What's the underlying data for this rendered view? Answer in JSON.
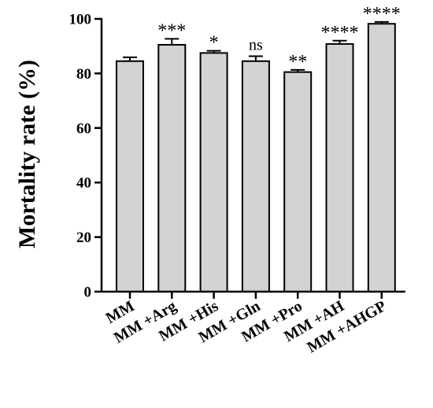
{
  "chart_data": {
    "type": "bar",
    "categories": [
      "MM",
      "MM +Arg",
      "MM +His",
      "MM +Gln",
      "MM +Pro",
      "MM +AH",
      "MM +AHGP"
    ],
    "values": [
      84.5,
      90.5,
      87.5,
      84.5,
      80.5,
      90.8,
      98.2
    ],
    "errors": [
      1.4,
      2.2,
      0.8,
      1.8,
      0.8,
      1.2,
      0.7
    ],
    "significance": [
      "",
      "***",
      "*",
      "ns",
      "**",
      "****",
      "****"
    ],
    "ylabel": "Mortality rate (%)",
    "xlabel": "",
    "title": "",
    "ylim": [
      0,
      100
    ],
    "yticks": [
      0,
      20,
      40,
      60,
      80,
      100
    ],
    "grid": false,
    "bar_color": "#d3d3d3",
    "edge_color": "#000000"
  }
}
